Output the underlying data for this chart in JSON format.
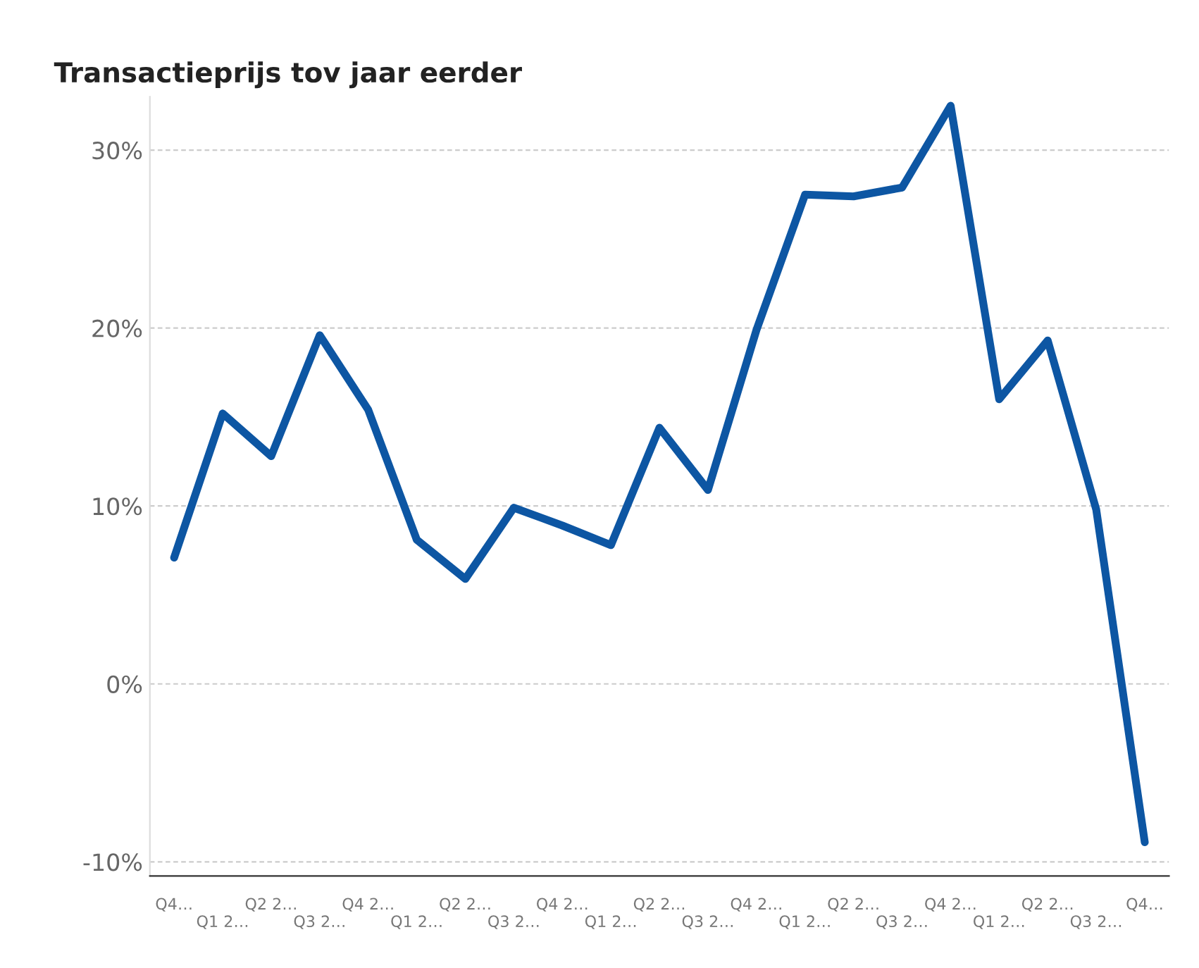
{
  "chart_data": {
    "type": "line",
    "title": "Transactieprijs tov jaar eerder",
    "categories": [
      "Q4…",
      "Q1 2…",
      "Q2 2…",
      "Q3 2…",
      "Q4 2…",
      "Q1 2…",
      "Q2 2…",
      "Q3 2…",
      "Q4 2…",
      "Q1 2…",
      "Q2 2…",
      "Q3 2…",
      "Q4 2…",
      "Q1 2…",
      "Q2 2…",
      "Q3 2…",
      "Q4 2…",
      "Q1 2…",
      "Q2 2…",
      "Q3 2…",
      "Q4…"
    ],
    "series": [
      {
        "color": "#0d56a3",
        "values": [
          7.1,
          15.2,
          12.8,
          19.6,
          15.4,
          8.1,
          5.9,
          9.9,
          8.9,
          7.8,
          14.4,
          10.9,
          19.9,
          27.5,
          27.4,
          27.9,
          32.5,
          16.0,
          19.3,
          9.8,
          -8.9
        ]
      }
    ],
    "ylim": [
      -10.8,
      33
    ],
    "yticks": [
      {
        "value": -10,
        "label": "-10%"
      },
      {
        "value": 0,
        "label": "0%"
      },
      {
        "value": 10,
        "label": "10%"
      },
      {
        "value": 20,
        "label": "20%"
      },
      {
        "value": 30,
        "label": "30%"
      }
    ],
    "grid": "y",
    "line_style": "solid",
    "marker": "none",
    "legend": false
  }
}
